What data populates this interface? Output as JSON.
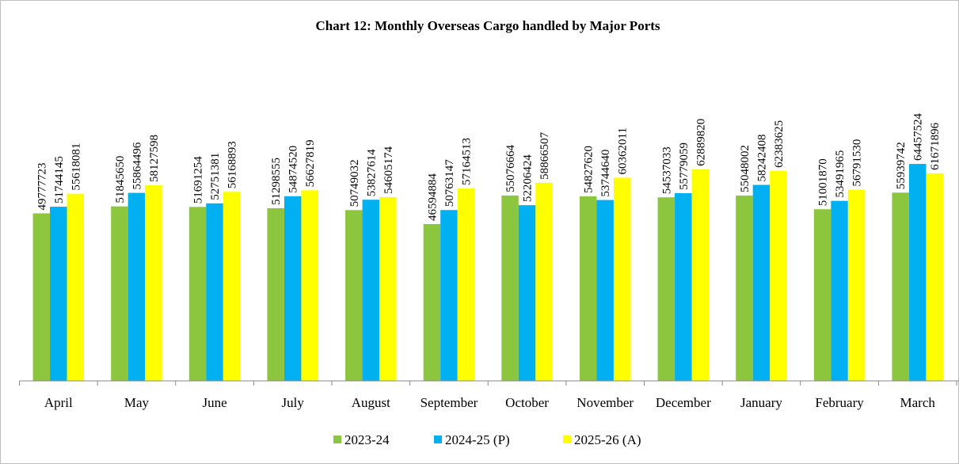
{
  "chart_data": {
    "type": "bar",
    "title": "Chart 12: Monthly Overseas Cargo handled by Major Ports",
    "categories": [
      "April",
      "May",
      "June",
      "July",
      "August",
      "September",
      "October",
      "November",
      "December",
      "January",
      "February",
      "March"
    ],
    "series": [
      {
        "name": "2023-24",
        "color": "#8cc63e",
        "values": [
          49777723,
          51845650,
          51691254,
          51298555,
          50749032,
          46594884,
          55076664,
          54827620,
          54537033,
          55048002,
          51001870,
          55939742
        ]
      },
      {
        "name": "2024-25 (P)",
        "color": "#00b0f0",
        "values": [
          51744145,
          55864496,
          52751381,
          54874520,
          53827614,
          50763147,
          52206424,
          53744640,
          55779059,
          58242408,
          53491965,
          64457524
        ]
      },
      {
        "name": "2025-26 (A)",
        "color": "#ffff00",
        "values": [
          55618081,
          58127598,
          56168893,
          56627819,
          54605174,
          57164513,
          58866507,
          60362011,
          62889820,
          62383625,
          56791530,
          61671896
        ]
      }
    ],
    "ylim": [
      0,
      80000000
    ],
    "legend": "bottom"
  }
}
